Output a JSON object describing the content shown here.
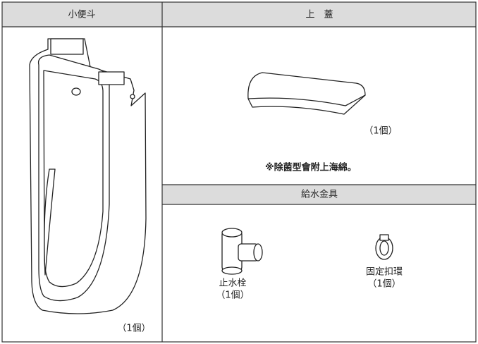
{
  "table": {
    "left": {
      "header": "小便斗",
      "quantity": "（1個）"
    },
    "top_right": {
      "header": "上　蓋",
      "quantity": "（1個）",
      "note": "※除菌型會附上海綿。"
    },
    "bottom_right": {
      "header": "給水金具",
      "items": [
        {
          "name": "止水栓",
          "quantity": "（1個）"
        },
        {
          "name": "固定扣環",
          "quantity": "（1個）"
        }
      ]
    }
  }
}
